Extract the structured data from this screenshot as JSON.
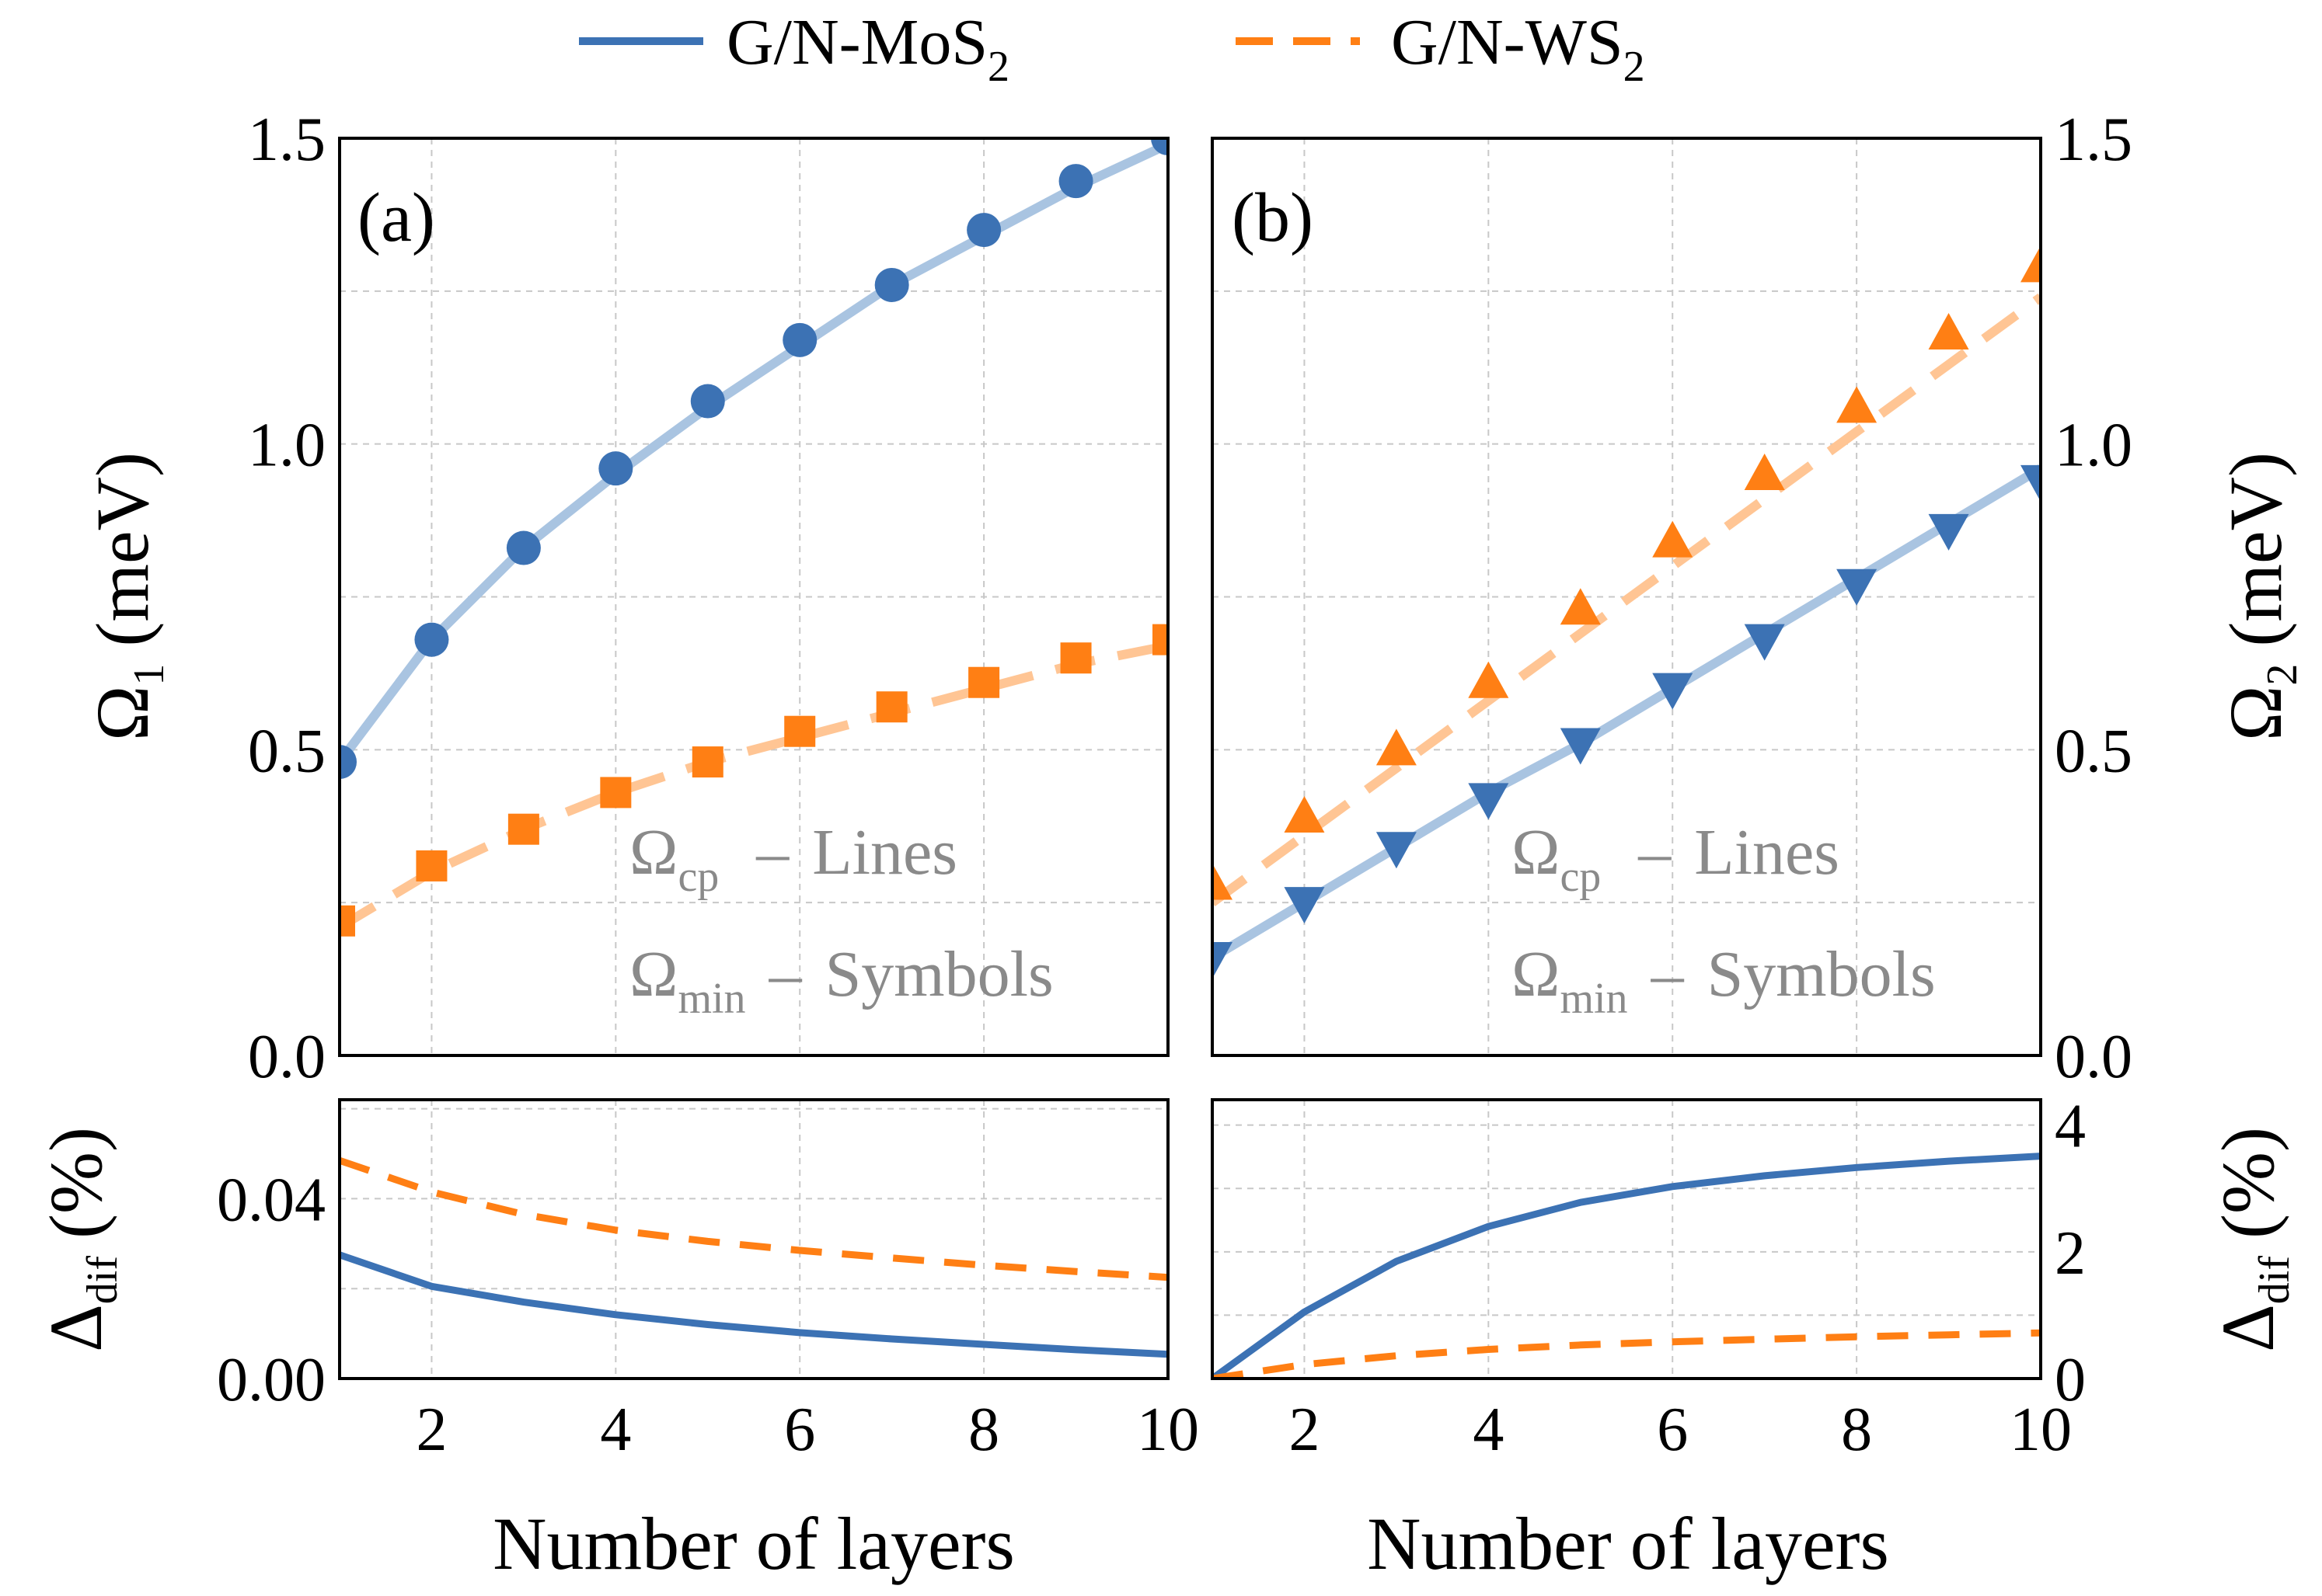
{
  "colors": {
    "mos2": "#3c72b4",
    "mos2_light": "#a9c4e1",
    "ws2": "#ff7f14",
    "ws2_light": "#ffc594",
    "annotation": "#8a8a8a"
  },
  "legend": {
    "series": [
      {
        "prefix": "G/N-MoS",
        "subscript": "2"
      },
      {
        "prefix": "G/N-WS",
        "subscript": "2"
      }
    ]
  },
  "annotation": {
    "omega": "Ω",
    "cp_sub": "cp",
    "min_sub": "min",
    "dash": "–",
    "lines": "Lines",
    "symbols": "Symbols"
  },
  "chart_data": [
    {
      "id": "a-top",
      "type": "line",
      "panel_label": "(a)",
      "ylabel": {
        "main": "Ω",
        "sub": "1",
        "unit": "(meV)"
      },
      "xlim": [
        1,
        10
      ],
      "ylim": [
        0,
        1.5
      ],
      "yticks": [
        0.0,
        0.5,
        1.0,
        1.5
      ],
      "yticklabels": [
        "0.0",
        "0.5",
        "1.0",
        "1.5"
      ],
      "xticks": [
        2,
        4,
        6,
        8,
        10
      ],
      "x": [
        1,
        2,
        3,
        4,
        5,
        6,
        7,
        8,
        9,
        10
      ],
      "series": [
        {
          "name": "G/N-MoS2 Ω_cp (line)",
          "style": "solid",
          "values": [
            0.48,
            0.68,
            0.83,
            0.95,
            1.06,
            1.16,
            1.26,
            1.34,
            1.42,
            1.49
          ]
        },
        {
          "name": "G/N-MoS2 Ω_min (symbols)",
          "marker": "circle",
          "values": [
            0.48,
            0.68,
            0.83,
            0.96,
            1.07,
            1.17,
            1.26,
            1.35,
            1.43,
            1.5
          ]
        },
        {
          "name": "G/N-WS2 Ω_cp (line)",
          "style": "dashed",
          "values": [
            0.21,
            0.3,
            0.37,
            0.43,
            0.48,
            0.52,
            0.56,
            0.6,
            0.64,
            0.67
          ]
        },
        {
          "name": "G/N-WS2 Ω_min (symbols)",
          "marker": "square",
          "values": [
            0.22,
            0.31,
            0.37,
            0.43,
            0.48,
            0.53,
            0.57,
            0.61,
            0.65,
            0.68
          ]
        }
      ]
    },
    {
      "id": "b-top",
      "type": "line",
      "panel_label": "(b)",
      "ylabel": {
        "main": "Ω",
        "sub": "2",
        "unit": "(meV)"
      },
      "xlim": [
        1,
        10
      ],
      "ylim": [
        0,
        1.5
      ],
      "yticks": [
        0.0,
        0.5,
        1.0,
        1.5
      ],
      "yticklabels": [
        "0.0",
        "0.5",
        "1.0",
        "1.5"
      ],
      "xticks": [
        2,
        4,
        6,
        8,
        10
      ],
      "x": [
        1,
        2,
        3,
        4,
        5,
        6,
        7,
        8,
        9,
        10
      ],
      "series": [
        {
          "name": "G/N-MoS2 Ω_cp (line)",
          "style": "solid",
          "values": [
            0.16,
            0.25,
            0.34,
            0.43,
            0.51,
            0.6,
            0.69,
            0.78,
            0.87,
            0.96
          ]
        },
        {
          "name": "G/N-MoS2 Ω_min (symbols)",
          "marker": "triangle-down",
          "values": [
            0.16,
            0.25,
            0.34,
            0.42,
            0.51,
            0.6,
            0.68,
            0.77,
            0.86,
            0.94
          ]
        },
        {
          "name": "G/N-WS2 Ω_cp (line)",
          "style": "dashed",
          "values": [
            0.25,
            0.36,
            0.47,
            0.58,
            0.69,
            0.8,
            0.91,
            1.02,
            1.13,
            1.24
          ]
        },
        {
          "name": "G/N-WS2 Ω_min (symbols)",
          "marker": "triangle-up",
          "values": [
            0.28,
            0.39,
            0.5,
            0.61,
            0.73,
            0.84,
            0.95,
            1.06,
            1.18,
            1.29
          ]
        }
      ]
    },
    {
      "id": "a-bottom",
      "type": "line",
      "ylabel": {
        "main": "Δ",
        "sub": "dif",
        "unit": "(%)"
      },
      "xlabel": "Number of layers",
      "xlim": [
        1,
        10
      ],
      "ylim": [
        0,
        0.062
      ],
      "yticks": [
        0.0,
        0.04
      ],
      "yticklabels": [
        "0.00",
        "0.04"
      ],
      "xticks": [
        2,
        4,
        6,
        8,
        10
      ],
      "xticklabels": [
        "2",
        "4",
        "6",
        "8",
        "10"
      ],
      "x": [
        1,
        2,
        3,
        4,
        5,
        6,
        7,
        8,
        9,
        10
      ],
      "series": [
        {
          "name": "G/N-MoS2",
          "style": "solid",
          "values": [
            0.0275,
            0.0205,
            0.017,
            0.0142,
            0.012,
            0.0102,
            0.0088,
            0.0076,
            0.0064,
            0.0054
          ]
        },
        {
          "name": "G/N-WS2",
          "style": "dashed",
          "values": [
            0.0485,
            0.0415,
            0.0365,
            0.033,
            0.0305,
            0.0285,
            0.0268,
            0.0252,
            0.0238,
            0.0225
          ]
        }
      ]
    },
    {
      "id": "b-bottom",
      "type": "line",
      "ylabel": {
        "main": "Δ",
        "sub": "dif",
        "unit": "(%)"
      },
      "xlabel": "Number of layers",
      "xlim": [
        1,
        10
      ],
      "ylim": [
        0,
        4.4
      ],
      "yticks": [
        0,
        2,
        4
      ],
      "yticklabels": [
        "0",
        "2",
        "4"
      ],
      "xticks": [
        2,
        4,
        6,
        8,
        10
      ],
      "xticklabels": [
        "2",
        "4",
        "6",
        "8",
        "10"
      ],
      "x": [
        1,
        2,
        3,
        4,
        5,
        6,
        7,
        8,
        9,
        10
      ],
      "series": [
        {
          "name": "G/N-MoS2",
          "style": "solid",
          "values": [
            0.0,
            1.05,
            1.85,
            2.4,
            2.78,
            3.03,
            3.2,
            3.33,
            3.43,
            3.51
          ]
        },
        {
          "name": "G/N-WS2",
          "style": "dashed",
          "values": [
            0.0,
            0.22,
            0.36,
            0.46,
            0.53,
            0.58,
            0.62,
            0.66,
            0.69,
            0.72
          ]
        }
      ]
    }
  ]
}
